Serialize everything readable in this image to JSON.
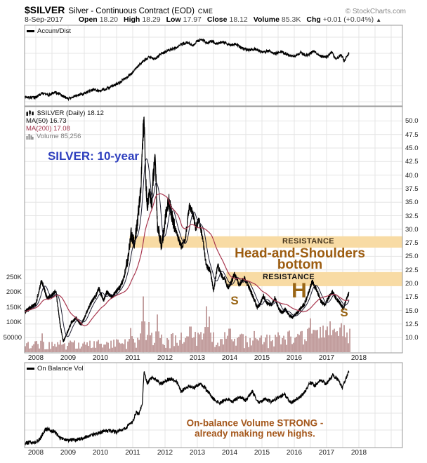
{
  "header": {
    "symbol": "$SILVER",
    "name": "Silver - Continuous Contract (EOD)",
    "exchange": "CME",
    "source": "© StockCharts.com",
    "date": "8-Sep-2017",
    "quote": [
      {
        "label": "Open",
        "value": "18.20"
      },
      {
        "label": "High",
        "value": "18.29"
      },
      {
        "label": "Low",
        "value": "17.97"
      },
      {
        "label": "Close",
        "value": "18.12"
      },
      {
        "label": "Volume",
        "value": "85.3K"
      },
      {
        "label": "Chg",
        "value": "+0.01 (+0.04%)"
      }
    ],
    "chg_arrow": "▲"
  },
  "panels": {
    "accum": {
      "legend": "Accum/Dist"
    },
    "main": {
      "legend_symbol": "$SILVER (Daily) 18.12",
      "legend_ma50": "MA(50) 16.73",
      "legend_ma200": "MA(200) 17.08",
      "legend_volume": "Volume 85,256"
    },
    "obv": {
      "legend": "On Balance Vol"
    }
  },
  "annotations": {
    "silver_period": {
      "text": "SILVER: 10-year",
      "color": "#2e3fbe"
    },
    "resistance_upper": {
      "text": "RESISTANCE",
      "color": "#46351c"
    },
    "head_shoulders_line1": {
      "text": "Head-and-Shoulders",
      "color": "#9c5c10"
    },
    "head_shoulders_line2": {
      "text": "bottom",
      "color": "#9c5c10"
    },
    "resistance_lower": {
      "text": "RESISTANCE",
      "color": "#161616"
    },
    "letter_h": {
      "text": "H",
      "color": "#996515"
    },
    "letter_s_left": {
      "text": "S",
      "color": "#996515"
    },
    "letter_s_right": {
      "text": "S",
      "color": "#996515"
    },
    "obv_note_line1": {
      "text": "On-balance Volume STRONG -",
      "color": "#a4571b"
    },
    "obv_note_line2": {
      "text": "already making new highs.",
      "color": "#a4571b"
    }
  },
  "colors": {
    "price_line": "#000000",
    "ma50": "#1c1c30",
    "ma200": "#a8364e",
    "ma200_text": "#a03048",
    "volume_bar": "#b28383",
    "volume_text": "#7a7a7a",
    "resistance_band": "#f8dba4",
    "grid": "#e4e4e4",
    "border": "#9a9a9a"
  },
  "chart_data": [
    {
      "id": "accum_dist",
      "type": "line",
      "title": "Accum/Dist",
      "x_unit": "year",
      "y_unit": "normalized",
      "series": [
        {
          "name": "Accum/Dist",
          "color": "#000000",
          "points": [
            [
              2007.67,
              0.1
            ],
            [
              2008.0,
              0.1
            ],
            [
              2008.2,
              0.16
            ],
            [
              2008.4,
              0.14
            ],
            [
              2008.6,
              0.18
            ],
            [
              2008.8,
              0.13
            ],
            [
              2009.0,
              0.08
            ],
            [
              2009.2,
              0.12
            ],
            [
              2009.5,
              0.16
            ],
            [
              2009.8,
              0.22
            ],
            [
              2010.0,
              0.2
            ],
            [
              2010.3,
              0.26
            ],
            [
              2010.6,
              0.33
            ],
            [
              2010.9,
              0.44
            ],
            [
              2011.1,
              0.55
            ],
            [
              2011.3,
              0.65
            ],
            [
              2011.5,
              0.72
            ],
            [
              2011.7,
              0.7
            ],
            [
              2011.9,
              0.78
            ],
            [
              2012.1,
              0.83
            ],
            [
              2012.3,
              0.86
            ],
            [
              2012.5,
              0.92
            ],
            [
              2012.7,
              0.95
            ],
            [
              2012.85,
              0.9
            ],
            [
              2013.0,
              0.97
            ],
            [
              2013.15,
              1.0
            ],
            [
              2013.3,
              0.94
            ],
            [
              2013.45,
              0.97
            ],
            [
              2013.6,
              0.93
            ],
            [
              2013.8,
              0.96
            ],
            [
              2014.0,
              0.91
            ],
            [
              2014.2,
              0.93
            ],
            [
              2014.4,
              0.86
            ],
            [
              2014.6,
              0.83
            ],
            [
              2014.8,
              0.85
            ],
            [
              2015.0,
              0.8
            ],
            [
              2015.2,
              0.82
            ],
            [
              2015.4,
              0.78
            ],
            [
              2015.6,
              0.81
            ],
            [
              2015.8,
              0.76
            ],
            [
              2016.0,
              0.73
            ],
            [
              2016.2,
              0.79
            ],
            [
              2016.4,
              0.75
            ],
            [
              2016.6,
              0.82
            ],
            [
              2016.8,
              0.74
            ],
            [
              2017.0,
              0.72
            ],
            [
              2017.15,
              0.8
            ],
            [
              2017.3,
              0.69
            ],
            [
              2017.45,
              0.76
            ],
            [
              2017.55,
              0.66
            ],
            [
              2017.62,
              0.72
            ],
            [
              2017.69,
              0.78
            ]
          ]
        }
      ]
    },
    {
      "id": "main_price",
      "type": "line",
      "title": "$SILVER (Daily)",
      "last_close": 18.12,
      "ma50_value": 16.73,
      "ma200_value": 17.08,
      "volume_value": 85256,
      "ylim": [
        10,
        50
      ],
      "y_ticks": [
        "50.0",
        "47.5",
        "45.0",
        "42.5",
        "40.0",
        "37.5",
        "35.0",
        "32.5",
        "30.0",
        "27.5",
        "25.0",
        "22.5",
        "20.0",
        "17.5",
        "15.0",
        "12.5",
        "10.0"
      ],
      "volume_ticks": [
        {
          "label": "250K",
          "thousands": 250
        },
        {
          "label": "200K",
          "thousands": 200
        },
        {
          "label": "150K",
          "thousands": 150
        },
        {
          "label": "100K",
          "thousands": 100
        },
        {
          "label": "50000",
          "thousands": 50
        }
      ],
      "x_ticks_years": [
        "2008",
        "2009",
        "2010",
        "2011",
        "2012",
        "2013",
        "2014",
        "2015",
        "2016",
        "2017",
        "2018"
      ],
      "series": [
        {
          "name": "price",
          "color": "#000000",
          "points": [
            [
              2007.67,
              14.8
            ],
            [
              2008.0,
              16.2
            ],
            [
              2008.18,
              20.6
            ],
            [
              2008.35,
              17.2
            ],
            [
              2008.5,
              17.8
            ],
            [
              2008.62,
              18.6
            ],
            [
              2008.75,
              12.5
            ],
            [
              2008.85,
              9.3
            ],
            [
              2008.95,
              10.5
            ],
            [
              2009.1,
              12.8
            ],
            [
              2009.25,
              13.6
            ],
            [
              2009.4,
              12.4
            ],
            [
              2009.55,
              14.3
            ],
            [
              2009.7,
              16.4
            ],
            [
              2009.85,
              17.6
            ],
            [
              2009.95,
              19.0
            ],
            [
              2010.1,
              16.9
            ],
            [
              2010.2,
              18.4
            ],
            [
              2010.35,
              17.4
            ],
            [
              2010.5,
              18.6
            ],
            [
              2010.62,
              19.4
            ],
            [
              2010.72,
              21.0
            ],
            [
              2010.85,
              24.5
            ],
            [
              2010.95,
              29.2
            ],
            [
              2011.05,
              27.2
            ],
            [
              2011.15,
              31.5
            ],
            [
              2011.25,
              37.5
            ],
            [
              2011.32,
              48.0
            ],
            [
              2011.36,
              49.5
            ],
            [
              2011.4,
              39.5
            ],
            [
              2011.45,
              34.5
            ],
            [
              2011.52,
              37.0
            ],
            [
              2011.58,
              34.0
            ],
            [
              2011.63,
              39.5
            ],
            [
              2011.7,
              43.5
            ],
            [
              2011.76,
              31.0
            ],
            [
              2011.82,
              29.5
            ],
            [
              2011.88,
              26.8
            ],
            [
              2011.95,
              29.0
            ],
            [
              2012.03,
              33.0
            ],
            [
              2012.12,
              35.3
            ],
            [
              2012.25,
              31.5
            ],
            [
              2012.4,
              28.5
            ],
            [
              2012.5,
              26.8
            ],
            [
              2012.62,
              27.8
            ],
            [
              2012.75,
              34.3
            ],
            [
              2012.88,
              32.5
            ],
            [
              2012.95,
              30.2
            ],
            [
              2013.05,
              31.8
            ],
            [
              2013.15,
              28.8
            ],
            [
              2013.28,
              23.2
            ],
            [
              2013.4,
              22.4
            ],
            [
              2013.5,
              18.6
            ],
            [
              2013.63,
              23.3
            ],
            [
              2013.75,
              21.5
            ],
            [
              2013.85,
              20.8
            ],
            [
              2013.95,
              19.2
            ],
            [
              2014.05,
              20.2
            ],
            [
              2014.15,
              21.8
            ],
            [
              2014.3,
              19.7
            ],
            [
              2014.45,
              21.0
            ],
            [
              2014.6,
              19.3
            ],
            [
              2014.75,
              17.2
            ],
            [
              2014.85,
              15.6
            ],
            [
              2014.95,
              16.2
            ],
            [
              2015.05,
              17.8
            ],
            [
              2015.15,
              16.3
            ],
            [
              2015.3,
              16.0
            ],
            [
              2015.4,
              17.4
            ],
            [
              2015.5,
              15.6
            ],
            [
              2015.6,
              14.6
            ],
            [
              2015.72,
              15.2
            ],
            [
              2015.85,
              14.1
            ],
            [
              2015.95,
              13.8
            ],
            [
              2016.05,
              14.3
            ],
            [
              2016.2,
              15.4
            ],
            [
              2016.32,
              16.2
            ],
            [
              2016.45,
              18.4
            ],
            [
              2016.55,
              20.4
            ],
            [
              2016.62,
              19.6
            ],
            [
              2016.72,
              18.4
            ],
            [
              2016.82,
              16.8
            ],
            [
              2016.95,
              16.0
            ],
            [
              2017.05,
              17.3
            ],
            [
              2017.18,
              18.4
            ],
            [
              2017.3,
              17.2
            ],
            [
              2017.42,
              16.3
            ],
            [
              2017.52,
              15.3
            ],
            [
              2017.6,
              17.0
            ],
            [
              2017.69,
              18.12
            ]
          ]
        }
      ],
      "volume_profile_thousands": [
        [
          2007.67,
          26
        ],
        [
          2008.3,
          30
        ],
        [
          2009.0,
          28
        ],
        [
          2010.0,
          28
        ],
        [
          2010.8,
          35
        ],
        [
          2011.0,
          42
        ],
        [
          2011.5,
          55
        ],
        [
          2012.0,
          42
        ],
        [
          2012.8,
          48
        ],
        [
          2013.2,
          55
        ],
        [
          2013.6,
          50
        ],
        [
          2014.0,
          44
        ],
        [
          2015.0,
          40
        ],
        [
          2016.0,
          52
        ],
        [
          2016.6,
          58
        ],
        [
          2017.0,
          60
        ],
        [
          2017.69,
          62
        ]
      ],
      "volume_spikes_thousands": [
        [
          2008.2,
          62
        ],
        [
          2010.95,
          80
        ],
        [
          2011.33,
          185
        ],
        [
          2011.5,
          100
        ],
        [
          2011.76,
          125
        ],
        [
          2012.78,
          85
        ],
        [
          2013.28,
          152
        ],
        [
          2013.37,
          118
        ],
        [
          2014.0,
          78
        ],
        [
          2014.75,
          70
        ],
        [
          2016.5,
          112
        ],
        [
          2016.88,
          88
        ],
        [
          2017.1,
          102
        ],
        [
          2017.45,
          96
        ],
        [
          2017.56,
          90
        ]
      ],
      "resistance_bands": [
        {
          "from_year": 2010.9,
          "price_top": 28.7,
          "price_bottom": 26.6
        },
        {
          "from_year": 2013.9,
          "price_top": 22.1,
          "price_bottom": 19.5
        }
      ]
    },
    {
      "id": "on_balance_volume",
      "type": "line",
      "title": "On Balance Vol",
      "x_unit": "year",
      "y_unit": "normalized",
      "series": [
        {
          "name": "On Balance Vol",
          "color": "#000000",
          "points": [
            [
              2007.67,
              0.015
            ],
            [
              2008.0,
              0.02
            ],
            [
              2008.15,
              0.08
            ],
            [
              2008.3,
              0.2
            ],
            [
              2008.45,
              0.18
            ],
            [
              2008.6,
              0.16
            ],
            [
              2008.75,
              0.08
            ],
            [
              2009.0,
              0.05
            ],
            [
              2009.3,
              0.06
            ],
            [
              2009.6,
              0.1
            ],
            [
              2009.9,
              0.14
            ],
            [
              2010.2,
              0.18
            ],
            [
              2010.5,
              0.16
            ],
            [
              2010.8,
              0.22
            ],
            [
              2011.0,
              0.3
            ],
            [
              2011.1,
              0.42
            ],
            [
              2011.2,
              0.4
            ],
            [
              2011.3,
              0.55
            ],
            [
              2011.35,
              0.97
            ],
            [
              2011.45,
              0.8
            ],
            [
              2011.55,
              0.88
            ],
            [
              2011.7,
              0.87
            ],
            [
              2011.85,
              0.8
            ],
            [
              2012.0,
              0.84
            ],
            [
              2012.2,
              0.87
            ],
            [
              2012.35,
              0.84
            ],
            [
              2012.5,
              0.7
            ],
            [
              2012.7,
              0.77
            ],
            [
              2012.9,
              0.75
            ],
            [
              2013.1,
              0.8
            ],
            [
              2013.3,
              0.72
            ],
            [
              2013.5,
              0.6
            ],
            [
              2013.7,
              0.55
            ],
            [
              2013.9,
              0.6
            ],
            [
              2014.1,
              0.57
            ],
            [
              2014.3,
              0.63
            ],
            [
              2014.5,
              0.58
            ],
            [
              2014.7,
              0.7
            ],
            [
              2014.9,
              0.55
            ],
            [
              2015.1,
              0.6
            ],
            [
              2015.3,
              0.56
            ],
            [
              2015.5,
              0.62
            ],
            [
              2015.7,
              0.66
            ],
            [
              2015.9,
              0.55
            ],
            [
              2016.1,
              0.6
            ],
            [
              2016.3,
              0.68
            ],
            [
              2016.5,
              0.82
            ],
            [
              2016.65,
              0.78
            ],
            [
              2016.8,
              0.85
            ],
            [
              2017.0,
              0.8
            ],
            [
              2017.2,
              0.92
            ],
            [
              2017.35,
              0.86
            ],
            [
              2017.5,
              0.75
            ],
            [
              2017.6,
              0.88
            ],
            [
              2017.69,
              0.97
            ]
          ]
        }
      ]
    }
  ]
}
